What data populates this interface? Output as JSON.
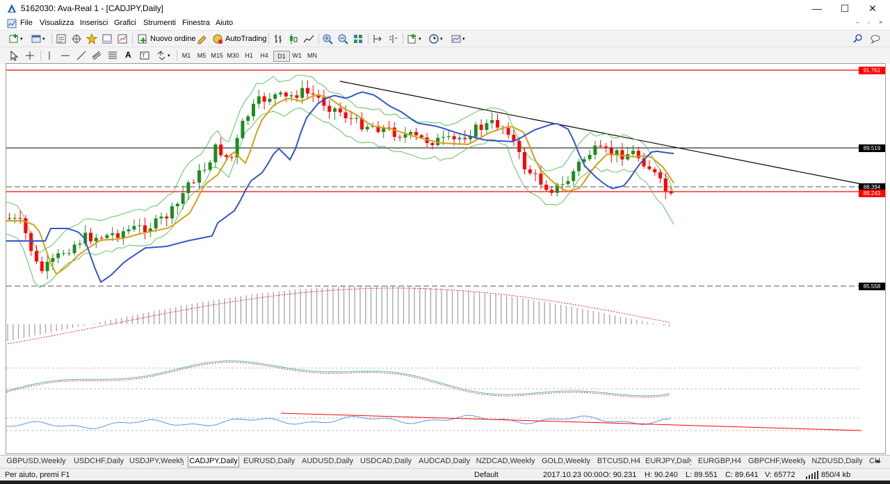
{
  "window": {
    "title": "5162030: Ava-Real 1 - [CADJPY,Daily]",
    "minimize": "—",
    "maximize": "☐",
    "close": "✕"
  },
  "menu": {
    "items": [
      "File",
      "Visualizza",
      "Inserisci",
      "Grafici",
      "Strumenti",
      "Finestra",
      "Aiuto"
    ],
    "mdi_minimize": "–",
    "mdi_restore": "▫",
    "mdi_close": "×"
  },
  "toolbar": {
    "new_order": "Nuovo ordine",
    "autotrading": "AutoTrading"
  },
  "timeframes": [
    "M1",
    "M5",
    "M15",
    "M30",
    "H1",
    "H4",
    "D1",
    "W1",
    "MN"
  ],
  "selected_timeframe": "D1",
  "chart": {
    "symbol": "CADJPY",
    "timeframe": "Daily",
    "price_labels": {
      "top_red": "91.761",
      "black_hline": "89.519",
      "dashed_hline": "88.394",
      "red_hline": "88.243",
      "bottom_dashed": "85.558"
    },
    "colors": {
      "bull": "#1e8c1e",
      "bear": "#ff0000",
      "ma_fast": "#d4a017",
      "ma_slow": "#3355cc",
      "bands": "#3cb33c",
      "trendline": "#000000",
      "hline_red": "#ff0000"
    }
  },
  "tabs": [
    "GBPUSD,Weekly",
    "USDCHF,Daily",
    "USDJPY,Weekly",
    "CADJPY,Daily",
    "EURUSD,Daily",
    "AUDUSD,Daily",
    "USDCAD,Daily",
    "AUDCAD,Daily",
    "NZDCAD,Weekly",
    "GOLD,Weekly",
    "BTCUSD,H4",
    "EURJPY,Daily",
    "EURGBP,H4",
    "GBPCHF,Weekly",
    "NZDUSD,Daily",
    "CH"
  ],
  "active_tab": "CADJPY,Daily",
  "status": {
    "help": "Per aiuto, premi F1",
    "profile": "Default",
    "datetime": "2017.10.23 00:00",
    "open": "O: 90.231",
    "high": "H: 90.240",
    "low": "L: 89.551",
    "close": "C: 89.641",
    "volume": "V: 65772",
    "traffic": "850/4 kb"
  }
}
